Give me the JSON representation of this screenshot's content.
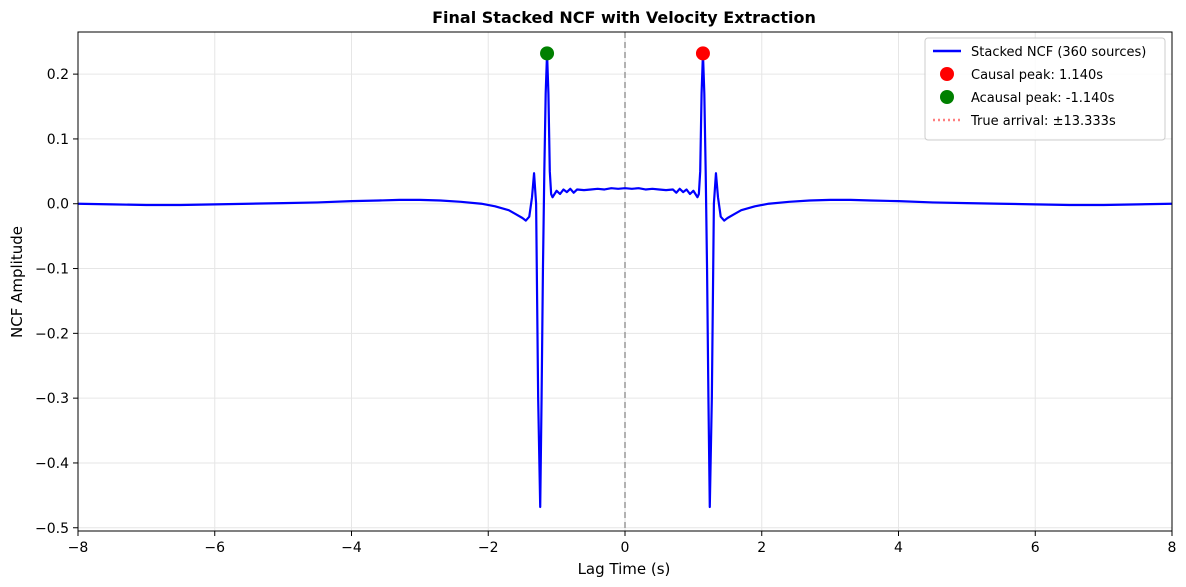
{
  "chart_data": {
    "type": "line",
    "title": "Final Stacked NCF with Velocity Extraction",
    "xlabel": "Lag Time (s)",
    "ylabel": "NCF Amplitude",
    "xlim": [
      -8,
      8
    ],
    "ylim": [
      -0.505,
      0.265
    ],
    "xticks": [
      -8,
      -6,
      -4,
      -2,
      0,
      2,
      4,
      6,
      8
    ],
    "xtick_labels": [
      "−8",
      "−6",
      "−4",
      "−2",
      "0",
      "2",
      "4",
      "6",
      "8"
    ],
    "yticks": [
      0.2,
      0.1,
      0.0,
      -0.1,
      -0.2,
      -0.3,
      -0.4,
      -0.5
    ],
    "ytick_labels": [
      "0.2",
      "0.1",
      "0.0",
      "−0.1",
      "−0.2",
      "−0.3",
      "−0.4",
      "−0.5"
    ],
    "grid": true,
    "legend_position": "top-right",
    "series": [
      {
        "name": "Stacked NCF (360 sources)",
        "color": "#0000ff",
        "x": [
          -8,
          -7.5,
          -7,
          -6.5,
          -6,
          -5.5,
          -5,
          -4.5,
          -4,
          -3.6,
          -3.3,
          -3.0,
          -2.7,
          -2.4,
          -2.1,
          -1.9,
          -1.7,
          -1.6,
          -1.5,
          -1.45,
          -1.4,
          -1.36,
          -1.33,
          -1.3,
          -1.27,
          -1.24,
          -1.22,
          -1.2,
          -1.18,
          -1.16,
          -1.14,
          -1.12,
          -1.1,
          -1.08,
          -1.06,
          -1.0,
          -0.95,
          -0.9,
          -0.85,
          -0.8,
          -0.75,
          -0.7,
          -0.6,
          -0.5,
          -0.4,
          -0.3,
          -0.2,
          -0.1,
          0,
          0.1,
          0.2,
          0.3,
          0.4,
          0.5,
          0.6,
          0.7,
          0.75,
          0.8,
          0.85,
          0.9,
          0.95,
          1.0,
          1.06,
          1.08,
          1.1,
          1.12,
          1.14,
          1.16,
          1.18,
          1.2,
          1.22,
          1.24,
          1.27,
          1.3,
          1.33,
          1.36,
          1.4,
          1.45,
          1.5,
          1.6,
          1.7,
          1.9,
          2.1,
          2.4,
          2.7,
          3.0,
          3.3,
          3.6,
          4,
          4.5,
          5,
          5.5,
          6,
          6.5,
          7,
          7.5,
          8
        ],
        "y": [
          0.0,
          -0.001,
          -0.002,
          -0.002,
          -0.001,
          0.0,
          0.001,
          0.002,
          0.004,
          0.005,
          0.006,
          0.006,
          0.005,
          0.003,
          0.0,
          -0.004,
          -0.01,
          -0.016,
          -0.022,
          -0.026,
          -0.02,
          0.01,
          0.047,
          0.0,
          -0.3,
          -0.468,
          -0.3,
          -0.1,
          0.05,
          0.17,
          0.232,
          0.17,
          0.05,
          0.015,
          0.01,
          0.02,
          0.015,
          0.022,
          0.018,
          0.023,
          0.017,
          0.022,
          0.021,
          0.022,
          0.023,
          0.022,
          0.024,
          0.023,
          0.024,
          0.023,
          0.024,
          0.022,
          0.023,
          0.022,
          0.021,
          0.022,
          0.017,
          0.023,
          0.018,
          0.022,
          0.015,
          0.02,
          0.01,
          0.015,
          0.05,
          0.17,
          0.232,
          0.17,
          0.05,
          -0.1,
          -0.3,
          -0.468,
          -0.3,
          0.0,
          0.047,
          0.01,
          -0.02,
          -0.026,
          -0.022,
          -0.016,
          -0.01,
          -0.004,
          0.0,
          0.003,
          0.005,
          0.006,
          0.006,
          0.005,
          0.004,
          0.002,
          0.001,
          0.0,
          -0.001,
          -0.002,
          -0.002,
          -0.001,
          0.0
        ]
      }
    ],
    "points": [
      {
        "name": "Causal peak: 1.140s",
        "x": 1.14,
        "y": 0.232,
        "color": "#ff0000"
      },
      {
        "name": "Acausal peak: -1.140s",
        "x": -1.14,
        "y": 0.232,
        "color": "#008000"
      }
    ],
    "reference_lines": [
      {
        "name": "zero-lag",
        "x": 0,
        "color": "#999999"
      }
    ],
    "legend": [
      {
        "label": "Stacked NCF (360 sources)",
        "kind": "line",
        "color": "#0000ff"
      },
      {
        "label": "Causal peak: 1.140s",
        "kind": "dot",
        "color": "#ff0000"
      },
      {
        "label": "Acausal peak: -1.140s",
        "kind": "dot",
        "color": "#008000"
      },
      {
        "label": "True arrival: ±13.333s",
        "kind": "dotted",
        "color": "#ff8080"
      }
    ]
  }
}
